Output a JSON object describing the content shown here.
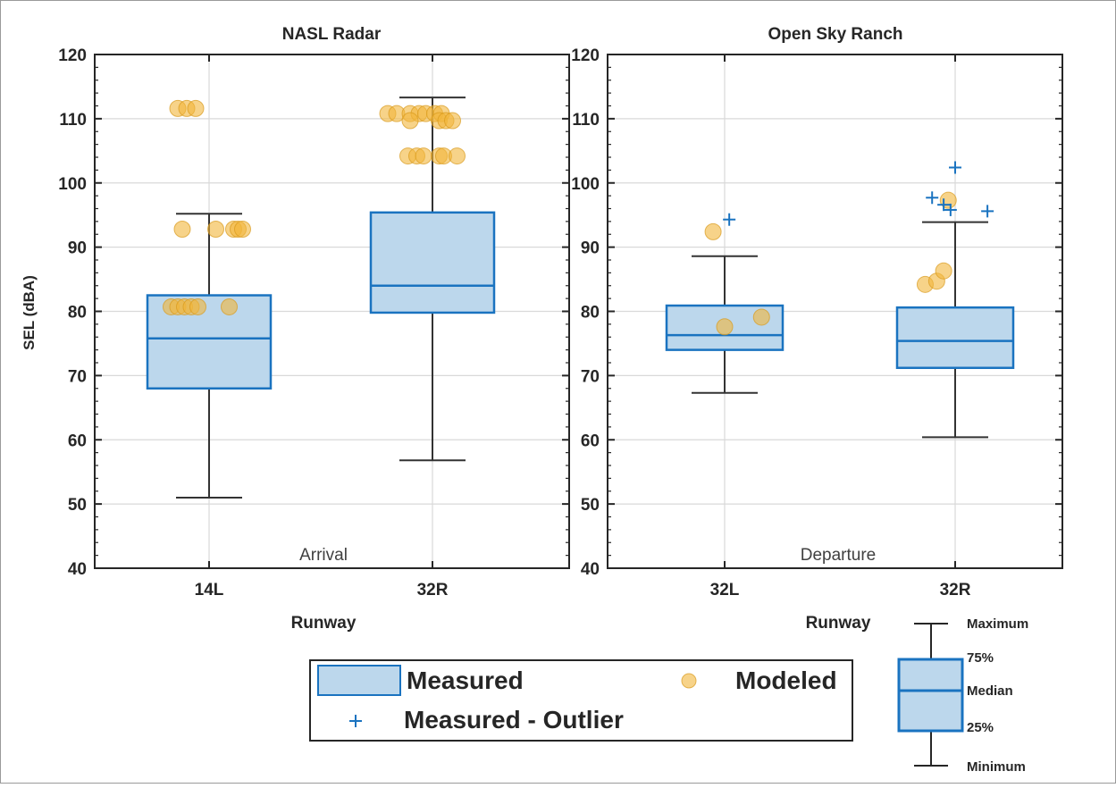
{
  "chart_data": [
    {
      "type": "box",
      "title": "NASL Radar",
      "xlabel": "Runway",
      "ylabel": "SEL (dBA)",
      "annotation": "Arrival",
      "ylim": [
        40,
        120
      ],
      "yticks": [
        "40",
        "50",
        "60",
        "70",
        "80",
        "90",
        "100",
        "110",
        "120"
      ],
      "grid": true,
      "categories": [
        "14L",
        "32R"
      ],
      "boxes": [
        {
          "category": "14L",
          "min": 51,
          "q1": 68,
          "median": 75.8,
          "q3": 82.5,
          "max": 95.2,
          "outliers": []
        },
        {
          "category": "32R",
          "min": 56.8,
          "q1": 79.8,
          "median": 84,
          "q3": 95.4,
          "max": 113.3,
          "outliers": []
        }
      ],
      "modeled_points": [
        {
          "category": "14L",
          "y": 111.6,
          "dx": -0.14
        },
        {
          "category": "14L",
          "y": 111.6,
          "dx": -0.1
        },
        {
          "category": "14L",
          "y": 111.6,
          "dx": -0.06
        },
        {
          "category": "14L",
          "y": 92.8,
          "dx": -0.12
        },
        {
          "category": "14L",
          "y": 92.8,
          "dx": 0.03
        },
        {
          "category": "14L",
          "y": 92.8,
          "dx": 0.11
        },
        {
          "category": "14L",
          "y": 92.8,
          "dx": 0.13
        },
        {
          "category": "14L",
          "y": 92.8,
          "dx": 0.15
        },
        {
          "category": "14L",
          "y": 80.7,
          "dx": -0.17
        },
        {
          "category": "14L",
          "y": 80.7,
          "dx": -0.14
        },
        {
          "category": "14L",
          "y": 80.7,
          "dx": -0.11
        },
        {
          "category": "14L",
          "y": 80.7,
          "dx": -0.08
        },
        {
          "category": "14L",
          "y": 80.7,
          "dx": -0.05
        },
        {
          "category": "14L",
          "y": 80.7,
          "dx": 0.09
        },
        {
          "category": "32R",
          "y": 110.8,
          "dx": -0.2
        },
        {
          "category": "32R",
          "y": 110.8,
          "dx": -0.16
        },
        {
          "category": "32R",
          "y": 110.8,
          "dx": -0.1
        },
        {
          "category": "32R",
          "y": 110.8,
          "dx": -0.06
        },
        {
          "category": "32R",
          "y": 110.8,
          "dx": -0.03
        },
        {
          "category": "32R",
          "y": 110.8,
          "dx": 0.01
        },
        {
          "category": "32R",
          "y": 110.8,
          "dx": 0.04
        },
        {
          "category": "32R",
          "y": 109.7,
          "dx": -0.1
        },
        {
          "category": "32R",
          "y": 109.7,
          "dx": 0.03
        },
        {
          "category": "32R",
          "y": 109.7,
          "dx": 0.06
        },
        {
          "category": "32R",
          "y": 109.7,
          "dx": 0.09
        },
        {
          "category": "32R",
          "y": 104.2,
          "dx": -0.11
        },
        {
          "category": "32R",
          "y": 104.2,
          "dx": -0.07
        },
        {
          "category": "32R",
          "y": 104.2,
          "dx": -0.04
        },
        {
          "category": "32R",
          "y": 104.2,
          "dx": 0.03
        },
        {
          "category": "32R",
          "y": 104.2,
          "dx": 0.05
        },
        {
          "category": "32R",
          "y": 104.2,
          "dx": 0.11
        }
      ]
    },
    {
      "type": "box",
      "title": "Open Sky Ranch",
      "xlabel": "Runway",
      "ylabel": "",
      "annotation": "Departure",
      "ylim": [
        40,
        120
      ],
      "yticks": [
        "40",
        "50",
        "60",
        "70",
        "80",
        "90",
        "100",
        "110",
        "120"
      ],
      "grid": true,
      "categories": [
        "32L",
        "32R"
      ],
      "boxes": [
        {
          "category": "32L",
          "min": 67.3,
          "q1": 74,
          "median": 76.3,
          "q3": 80.9,
          "max": 88.6,
          "outliers": [
            94.3
          ]
        },
        {
          "category": "32R",
          "min": 60.4,
          "q1": 71.2,
          "median": 75.4,
          "q3": 80.6,
          "max": 93.9,
          "outliers": [
            97.7,
            96.6,
            95.8,
            102.4,
            95.6
          ]
        }
      ],
      "outlier_offsets": [
        [
          0.02
        ],
        [
          -0.1,
          -0.05,
          -0.02,
          0.0,
          0.14
        ]
      ],
      "modeled_points": [
        {
          "category": "32L",
          "y": 92.4,
          "dx": -0.05
        },
        {
          "category": "32L",
          "y": 77.6,
          "dx": 0.0
        },
        {
          "category": "32L",
          "y": 79.1,
          "dx": 0.16
        },
        {
          "category": "32R",
          "y": 97.3,
          "dx": -0.03
        },
        {
          "category": "32R",
          "y": 84.2,
          "dx": -0.13
        },
        {
          "category": "32R",
          "y": 84.7,
          "dx": -0.08
        },
        {
          "category": "32R",
          "y": 86.3,
          "dx": -0.05
        }
      ]
    }
  ],
  "legend": {
    "measured": "Measured",
    "modeled": "Modeled",
    "outlier": "Measured - Outlier"
  },
  "key": {
    "maximum": "Maximum",
    "q3": "75%",
    "median": "Median",
    "q1": "25%",
    "minimum": "Minimum"
  },
  "colors": {
    "box_fill": "#bcd7ec",
    "box_edge": "#1a73c0",
    "whisker": "#333333",
    "modeled": "#f2b53a",
    "modeled_edge": "#d99a1c",
    "outlier": "#1a73c0",
    "grid": "#d9d9d9",
    "axis": "#262626",
    "annotation_text": "#404040"
  }
}
